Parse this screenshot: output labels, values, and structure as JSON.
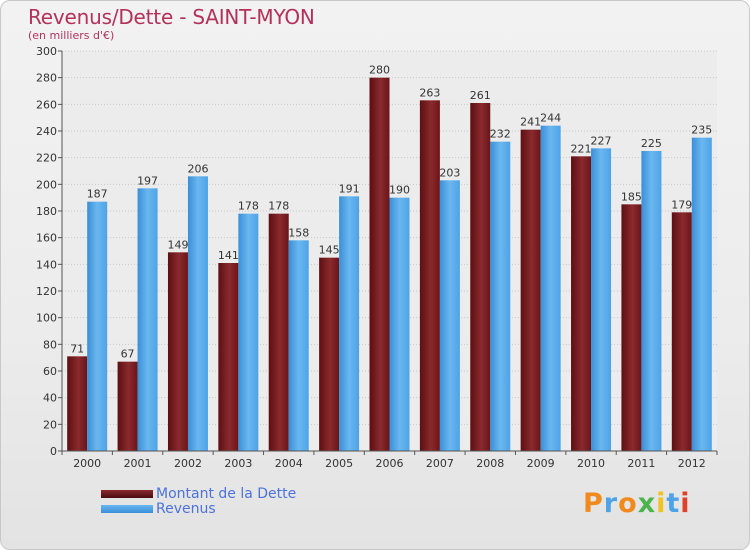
{
  "header": {
    "title": "Revenus/Dette - SAINT-MYON",
    "subtitle": "(en milliers d'€)"
  },
  "chart_data": {
    "type": "bar",
    "categories": [
      "2000",
      "2001",
      "2002",
      "2003",
      "2004",
      "2005",
      "2006",
      "2007",
      "2008",
      "2009",
      "2010",
      "2011",
      "2012"
    ],
    "series": [
      {
        "name": "Montant de la Dette",
        "color": "#7a1c20",
        "values": [
          71,
          67,
          149,
          141,
          178,
          145,
          280,
          263,
          261,
          241,
          221,
          185,
          179
        ]
      },
      {
        "name": "Revenus",
        "color": "#4ea3e6",
        "values": [
          187,
          197,
          206,
          178,
          158,
          191,
          190,
          203,
          232,
          244,
          227,
          225,
          235
        ]
      }
    ],
    "title": "Revenus/Dette - SAINT-MYON",
    "ylabel": "(en milliers d'€)",
    "ylim": [
      0,
      300
    ],
    "yticks": [
      0,
      20,
      40,
      60,
      80,
      100,
      120,
      140,
      160,
      180,
      200,
      220,
      240,
      260,
      280,
      300
    ],
    "grid": true,
    "legend_position": "bottom-left"
  },
  "legend": {
    "items": [
      {
        "label": "Montant de la Dette",
        "color": "#7a1c20"
      },
      {
        "label": "Revenus",
        "color": "#4ea3e6"
      }
    ]
  },
  "logo": {
    "text": "Proxiti",
    "colors": [
      "#f08a1c",
      "#4ea3e6",
      "#f08a1c",
      "#4db34d",
      "#f0c420",
      "#4ea3e6",
      "#e0402a"
    ]
  }
}
